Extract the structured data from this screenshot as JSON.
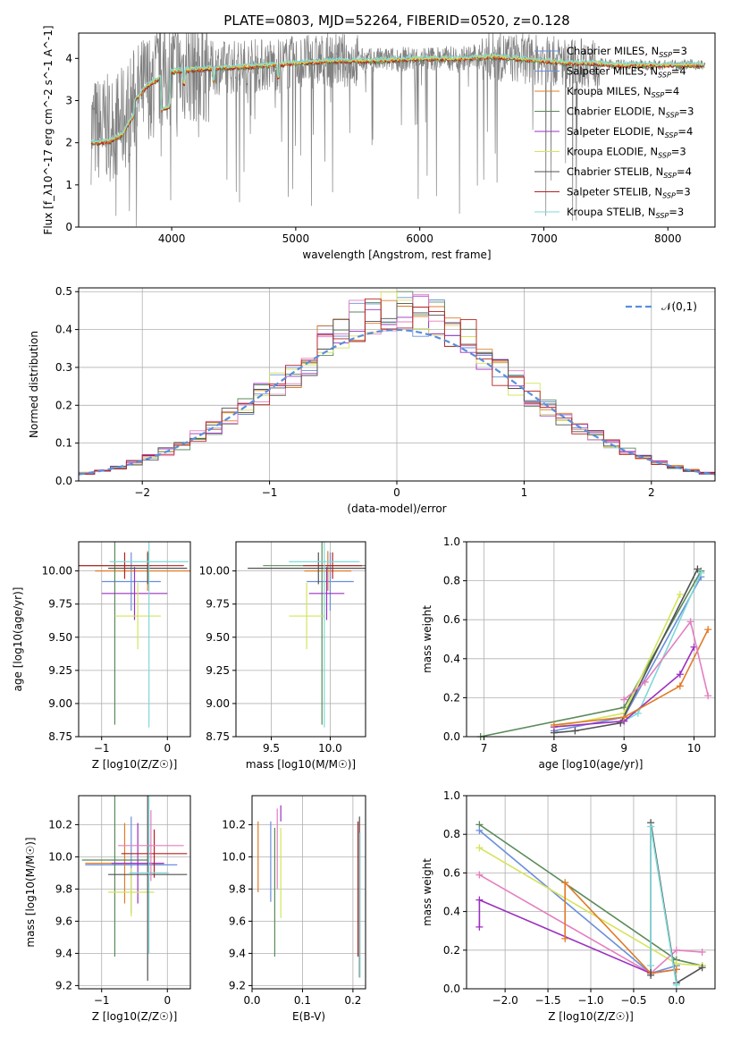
{
  "colors": {
    "chabrier_miles": "#6a8fdc",
    "salpeter_miles": "#6a8fdc",
    "kroupa_miles": "#e07b28",
    "chabrier_elodie": "#5a8a5a",
    "salpeter_elodie": "#9b30c0",
    "kroupa_elodie": "#d4e45a",
    "chabrier_stelib": "#505050",
    "salpeter_stelib": "#b52020",
    "kroupa_stelib": "#7fd8d8",
    "pink": "#e47fbf",
    "data": "#808080",
    "normal": "#5a8fdc"
  },
  "chart_data": [
    {
      "id": "spectrum",
      "type": "line",
      "title": "PLATE=0803, MJD=52264, FIBERID=0520, z=0.128",
      "xlabel": "wavelength [Angstrom, rest frame]",
      "ylabel": "Flux [f_λ10^-17 erg cm^-2 s^-1 A^-1]",
      "xlim": [
        3250,
        8380
      ],
      "ylim": [
        0,
        4.6
      ],
      "xticks": [
        4000,
        5000,
        6000,
        7000,
        8000
      ],
      "yticks": [
        0,
        1,
        2,
        3,
        4
      ],
      "grid": false,
      "legend_position": "top-right",
      "data_envelope": {
        "x": [
          3350,
          3500,
          3600,
          3700,
          3800,
          3900,
          4000,
          4200,
          4500,
          4800,
          5000,
          5300,
          5600,
          6000,
          6300,
          6600,
          6800,
          7000,
          7200,
          7400,
          7600,
          7800,
          8000,
          8300
        ],
        "y": [
          2.3,
          2.35,
          2.5,
          3.0,
          3.35,
          3.55,
          3.7,
          3.75,
          3.8,
          3.85,
          3.9,
          3.95,
          3.95,
          4.0,
          4.0,
          4.05,
          4.0,
          3.95,
          3.9,
          3.9,
          3.85,
          3.85,
          3.85,
          3.85
        ]
      },
      "series": [
        {
          "name": "Chabrier MILES, N_SSP=3",
          "color_key": "chabrier_miles"
        },
        {
          "name": "Salpeter MILES, N_SSP=4",
          "color_key": "salpeter_miles"
        },
        {
          "name": "Kroupa MILES, N_SSP=4",
          "color_key": "kroupa_miles"
        },
        {
          "name": "Chabrier ELODIE, N_SSP=3",
          "color_key": "chabrier_elodie"
        },
        {
          "name": "Salpeter ELODIE, N_SSP=4",
          "color_key": "salpeter_elodie"
        },
        {
          "name": "Kroupa ELODIE, N_SSP=3",
          "color_key": "kroupa_elodie"
        },
        {
          "name": "Chabrier STELIB, N_SSP=4",
          "color_key": "chabrier_stelib"
        },
        {
          "name": "Salpeter STELIB, N_SSP=3",
          "color_key": "salpeter_stelib"
        },
        {
          "name": "Kroupa STELIB, N_SSP=3",
          "color_key": "kroupa_stelib"
        }
      ]
    },
    {
      "id": "residuals",
      "type": "line",
      "xlabel": "(data-model)/error",
      "ylabel": "Normed distribution",
      "xlim": [
        -2.5,
        2.5
      ],
      "ylim": [
        0,
        0.51
      ],
      "xticks": [
        -2,
        -1,
        0,
        1,
        2
      ],
      "yticks": [
        0.0,
        0.1,
        0.2,
        0.3,
        0.4,
        0.5
      ],
      "grid": true,
      "legend": "𝒩(0,1)",
      "legend_position": "top-right"
    },
    {
      "id": "age_vs_z",
      "type": "scatter",
      "xlabel": "Z [log10(Z/Z☉)]",
      "ylabel": "age  [log10(age/yr)]",
      "xlim": [
        -1.35,
        0.35
      ],
      "ylim": [
        8.75,
        10.22
      ],
      "xticks": [
        -1,
        0
      ],
      "yticks": [
        8.75,
        9.0,
        9.25,
        9.5,
        9.75,
        10.0
      ],
      "grid": true,
      "points": [
        {
          "color_key": "chabrier_miles",
          "x": -0.55,
          "y": 9.92,
          "xerr": 0.45,
          "yerr": 0.22
        },
        {
          "color_key": "kroupa_miles",
          "x": -0.3,
          "y": 10.0,
          "xerr": 0.8,
          "yerr": 0.15
        },
        {
          "color_key": "chabrier_elodie",
          "x": -0.8,
          "y": 10.04,
          "xerr": 0.55,
          "yerr": 1.2
        },
        {
          "color_key": "salpeter_elodie",
          "x": -0.5,
          "y": 9.83,
          "xerr": 0.5,
          "yerr": 0.2
        },
        {
          "color_key": "kroupa_elodie",
          "x": -0.45,
          "y": 9.66,
          "xerr": 0.35,
          "yerr": 0.25
        },
        {
          "color_key": "chabrier_stelib",
          "x": -0.3,
          "y": 10.02,
          "xerr": 0.6,
          "yerr": 0.12
        },
        {
          "color_key": "salpeter_stelib",
          "x": -0.65,
          "y": 10.04,
          "xerr": 0.9,
          "yerr": 0.1
        },
        {
          "color_key": "kroupa_stelib",
          "x": -0.28,
          "y": 10.07,
          "xerr": 0.6,
          "yerr": 1.25
        }
      ]
    },
    {
      "id": "age_vs_mass",
      "type": "scatter",
      "xlabel": "mass [log10(M/M☉)]",
      "xlim": [
        9.2,
        10.3
      ],
      "ylim": [
        8.75,
        10.22
      ],
      "xticks": [
        9.5,
        10.0
      ],
      "yticks": [
        8.75,
        9.0,
        9.25,
        9.5,
        9.75,
        10.0
      ],
      "grid": true,
      "points": [
        {
          "color_key": "chabrier_miles",
          "x": 10.0,
          "y": 9.92,
          "xerr": 0.2,
          "yerr": 0.22
        },
        {
          "color_key": "kroupa_miles",
          "x": 9.98,
          "y": 10.0,
          "xerr": 0.2,
          "yerr": 0.15
        },
        {
          "color_key": "chabrier_elodie",
          "x": 9.93,
          "y": 10.04,
          "xerr": 0.5,
          "yerr": 1.2
        },
        {
          "color_key": "salpeter_elodie",
          "x": 9.97,
          "y": 9.83,
          "xerr": 0.15,
          "yerr": 0.2
        },
        {
          "color_key": "kroupa_elodie",
          "x": 9.8,
          "y": 9.66,
          "xerr": 0.15,
          "yerr": 0.25
        },
        {
          "color_key": "chabrier_stelib",
          "x": 9.9,
          "y": 10.02,
          "xerr": 0.6,
          "yerr": 0.12
        },
        {
          "color_key": "salpeter_stelib",
          "x": 10.02,
          "y": 10.04,
          "xerr": 0.25,
          "yerr": 0.1
        },
        {
          "color_key": "kroupa_stelib",
          "x": 9.95,
          "y": 10.07,
          "xerr": 0.3,
          "yerr": 1.25
        }
      ]
    },
    {
      "id": "mass_weight_vs_age",
      "type": "line",
      "xlabel": "age  [log10(age/yr)]",
      "ylabel": "mass weight",
      "xlim": [
        6.75,
        10.3
      ],
      "ylim": [
        0,
        1.0
      ],
      "xticks": [
        7,
        8,
        9,
        10
      ],
      "yticks": [
        0.0,
        0.2,
        0.4,
        0.6,
        0.8,
        1.0
      ],
      "grid": true,
      "series": [
        {
          "color_key": "chabrier_elodie",
          "x": [
            6.95,
            9.0,
            10.1
          ],
          "y": [
            0.0,
            0.15,
            0.85
          ]
        },
        {
          "color_key": "kroupa_elodie",
          "x": [
            8.0,
            9.0,
            9.8
          ],
          "y": [
            0.05,
            0.12,
            0.73
          ]
        },
        {
          "color_key": "chabrier_miles",
          "x": [
            8.0,
            9.0,
            10.1
          ],
          "y": [
            0.03,
            0.1,
            0.82
          ]
        },
        {
          "color_key": "chabrier_stelib",
          "x": [
            8.0,
            8.3,
            8.95,
            10.05
          ],
          "y": [
            0.02,
            0.03,
            0.07,
            0.86
          ]
        },
        {
          "color_key": "kroupa_stelib",
          "x": [
            9.0,
            9.2,
            10.1
          ],
          "y": [
            0.08,
            0.12,
            0.84
          ]
        },
        {
          "color_key": "salpeter_elodie",
          "x": [
            8.0,
            9.0,
            9.8,
            10.0
          ],
          "y": [
            0.05,
            0.08,
            0.32,
            0.46
          ]
        },
        {
          "color_key": "kroupa_miles",
          "x": [
            8.0,
            9.0,
            9.8,
            10.2
          ],
          "y": [
            0.06,
            0.1,
            0.26,
            0.55
          ]
        },
        {
          "color_key": "pink",
          "x": [
            9.0,
            9.3,
            9.95,
            10.2
          ],
          "y": [
            0.19,
            0.28,
            0.59,
            0.21
          ]
        }
      ]
    },
    {
      "id": "mass_vs_z",
      "type": "scatter",
      "xlabel": "Z [log10(Z/Z☉)]",
      "ylabel": "mass [log10(M/M☉)]",
      "xlim": [
        -1.35,
        0.35
      ],
      "ylim": [
        9.18,
        10.38
      ],
      "xticks": [
        -1,
        0
      ],
      "yticks": [
        9.2,
        9.4,
        9.6,
        9.8,
        10.0,
        10.2
      ],
      "grid": true,
      "points": [
        {
          "color_key": "chabrier_miles",
          "x": -0.55,
          "y": 9.95,
          "xerr": 0.7,
          "yerr": 0.3
        },
        {
          "color_key": "kroupa_miles",
          "x": -0.65,
          "y": 9.96,
          "xerr": 0.6,
          "yerr": 0.25
        },
        {
          "color_key": "chabrier_elodie",
          "x": -0.8,
          "y": 9.98,
          "xerr": 0.5,
          "yerr": 0.6
        },
        {
          "color_key": "salpeter_elodie",
          "x": -0.45,
          "y": 9.96,
          "xerr": 0.4,
          "yerr": 0.25
        },
        {
          "color_key": "kroupa_elodie",
          "x": -0.55,
          "y": 9.78,
          "xerr": 0.35,
          "yerr": 0.15
        },
        {
          "color_key": "chabrier_stelib",
          "x": -0.3,
          "y": 9.89,
          "xerr": 0.6,
          "yerr": 0.66
        },
        {
          "color_key": "salpeter_stelib",
          "x": -0.2,
          "y": 10.02,
          "xerr": 0.5,
          "yerr": 0.15
        },
        {
          "color_key": "kroupa_stelib",
          "x": -0.28,
          "y": 9.9,
          "xerr": 0.3,
          "yerr": 0.5
        },
        {
          "color_key": "pink",
          "x": -0.25,
          "y": 10.07,
          "xerr": 0.5,
          "yerr": 0.22
        }
      ]
    },
    {
      "id": "mass_vs_ebv",
      "type": "scatter",
      "xlabel": "E(B-V)",
      "xlim": [
        0,
        0.225
      ],
      "ylim": [
        9.18,
        10.38
      ],
      "xticks": [
        0.0,
        0.1,
        0.2
      ],
      "yticks": [
        9.2,
        9.4,
        9.6,
        9.8,
        10.0,
        10.2
      ],
      "grid": true,
      "points": [
        {
          "color_key": "kroupa_miles",
          "x": 0.012,
          "y": 10.0,
          "yerr": 0.22
        },
        {
          "color_key": "chabrier_miles",
          "x": 0.037,
          "y": 9.97,
          "yerr": 0.25
        },
        {
          "color_key": "chabrier_elodie",
          "x": 0.045,
          "y": 9.78,
          "yerr": 0.4
        },
        {
          "color_key": "pink",
          "x": 0.05,
          "y": 10.05,
          "yerr": 0.25
        },
        {
          "color_key": "salpeter_elodie",
          "x": 0.057,
          "y": 10.27,
          "yerr": 0.05
        },
        {
          "color_key": "kroupa_elodie",
          "x": 0.057,
          "y": 9.9,
          "yerr": 0.28
        },
        {
          "color_key": "salpeter_stelib",
          "x": 0.21,
          "y": 9.8,
          "yerr": 0.42
        },
        {
          "color_key": "chabrier_stelib",
          "x": 0.213,
          "y": 9.75,
          "yerr": 0.5
        },
        {
          "color_key": "kroupa_stelib",
          "x": 0.214,
          "y": 9.7,
          "yerr": 0.45
        }
      ]
    },
    {
      "id": "mass_weight_vs_z",
      "type": "line",
      "xlabel": "Z [log10(Z/Z☉)]",
      "ylabel": "mass weight",
      "xlim": [
        -2.45,
        0.45
      ],
      "ylim": [
        0,
        1.0
      ],
      "xticks": [
        -2.0,
        -1.5,
        -1.0,
        -0.5,
        0.0
      ],
      "yticks": [
        0.0,
        0.2,
        0.4,
        0.6,
        0.8,
        1.0
      ],
      "grid": true,
      "series": [
        {
          "color_key": "chabrier_elodie",
          "x": [
            -2.3,
            0.0,
            0.3
          ],
          "y": [
            0.85,
            0.15,
            0.12
          ]
        },
        {
          "color_key": "chabrier_miles",
          "x": [
            -2.3,
            -0.3,
            0.0
          ],
          "y": [
            0.82,
            0.08,
            0.12
          ]
        },
        {
          "color_key": "kroupa_elodie",
          "x": [
            -2.3,
            0.0,
            0.3
          ],
          "y": [
            0.73,
            0.13,
            0.12
          ]
        },
        {
          "color_key": "pink",
          "x": [
            -2.3,
            -0.3,
            0.0,
            0.3
          ],
          "y": [
            0.59,
            0.08,
            0.2,
            0.19
          ]
        },
        {
          "color_key": "salpeter_elodie",
          "x": [
            -2.3,
            -2.3,
            -0.3,
            0.0
          ],
          "y": [
            0.32,
            0.46,
            0.08,
            0.1
          ]
        },
        {
          "color_key": "kroupa_miles",
          "x": [
            -1.3,
            -1.3,
            -0.3,
            0.0
          ],
          "y": [
            0.26,
            0.55,
            0.08,
            0.1
          ]
        },
        {
          "color_key": "chabrier_stelib",
          "x": [
            -0.3,
            -0.3,
            0.0,
            0.3
          ],
          "y": [
            0.07,
            0.86,
            0.03,
            0.11
          ]
        },
        {
          "color_key": "kroupa_stelib",
          "x": [
            -0.3,
            -0.3,
            0.0
          ],
          "y": [
            0.12,
            0.84,
            0.02
          ]
        }
      ]
    }
  ]
}
